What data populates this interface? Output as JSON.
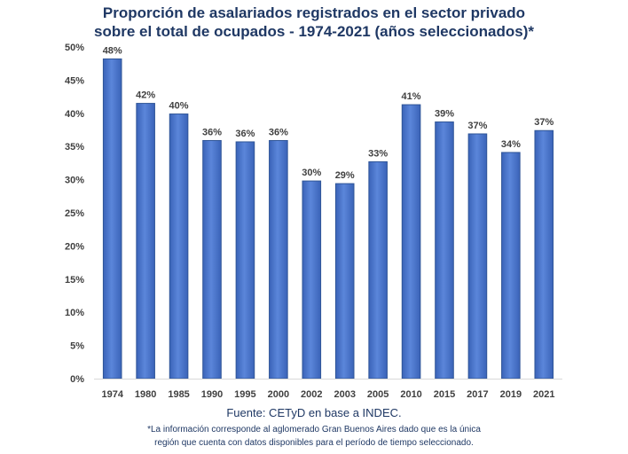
{
  "chart_data": {
    "type": "bar",
    "title_line1": "Proporción de asalariados registrados en el sector privado",
    "title_line2": "sobre el total de ocupados - 1974-2021 (años seleccionados)*",
    "categories": [
      "1974",
      "1980",
      "1985",
      "1990",
      "1995",
      "2000",
      "2002",
      "2003",
      "2005",
      "2010",
      "2015",
      "2017",
      "2019",
      "2021"
    ],
    "values": [
      48.2,
      41.5,
      39.9,
      35.9,
      35.7,
      35.9,
      29.8,
      29.4,
      32.7,
      41.3,
      38.7,
      36.9,
      34.1,
      37.4
    ],
    "data_labels": [
      "48%",
      "42%",
      "40%",
      "36%",
      "36%",
      "36%",
      "30%",
      "29%",
      "33%",
      "41%",
      "39%",
      "37%",
      "34%",
      "37%"
    ],
    "y_ticks": [
      "0%",
      "5%",
      "10%",
      "15%",
      "20%",
      "25%",
      "30%",
      "35%",
      "40%",
      "45%",
      "50%"
    ],
    "ylim": [
      0,
      50
    ],
    "xlabel": "",
    "ylabel": "",
    "grid": false,
    "bar_color": "#4472C4",
    "bar_edge_color": "#2F5597",
    "source": "Fuente: CETyD en base a INDEC.",
    "note_line1": "*La información corresponde al aglomerado Gran Buenos Aires dado que es la única",
    "note_line2": "región que cuenta con datos disponibles para el período de tiempo seleccionado."
  }
}
